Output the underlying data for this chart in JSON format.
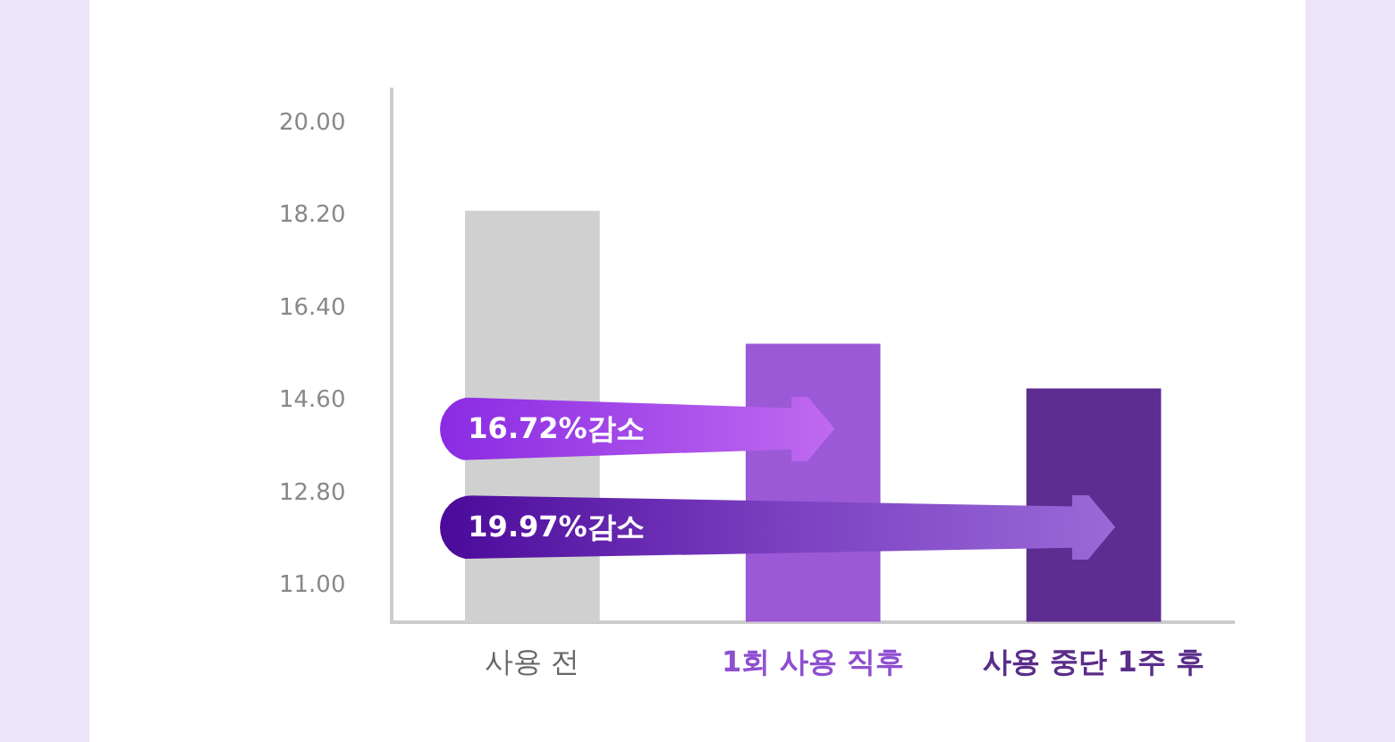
{
  "chart_data": {
    "type": "bar",
    "categories": [
      "사용 전",
      "1회 사용 직후",
      "사용 중단 1주 후"
    ],
    "values": [
      18.3,
      15.71,
      14.84
    ],
    "colors": [
      "#d0d0d0",
      "#9b59d6",
      "#5e2d91"
    ],
    "ylim": [
      10.3,
      20.66
    ],
    "yticks": [
      {
        "value": 20,
        "label": "20.00"
      },
      {
        "value": 18.2,
        "label": "18.20"
      },
      {
        "value": 16.4,
        "label": "16.40"
      },
      {
        "value": 14.6,
        "label": "14.60"
      },
      {
        "value": 12.8,
        "label": "12.80"
      },
      {
        "value": 11,
        "label": "11.00"
      }
    ],
    "grid": false,
    "legend": false,
    "annotations": [
      "16.72%감소",
      "19.97%감소"
    ]
  }
}
